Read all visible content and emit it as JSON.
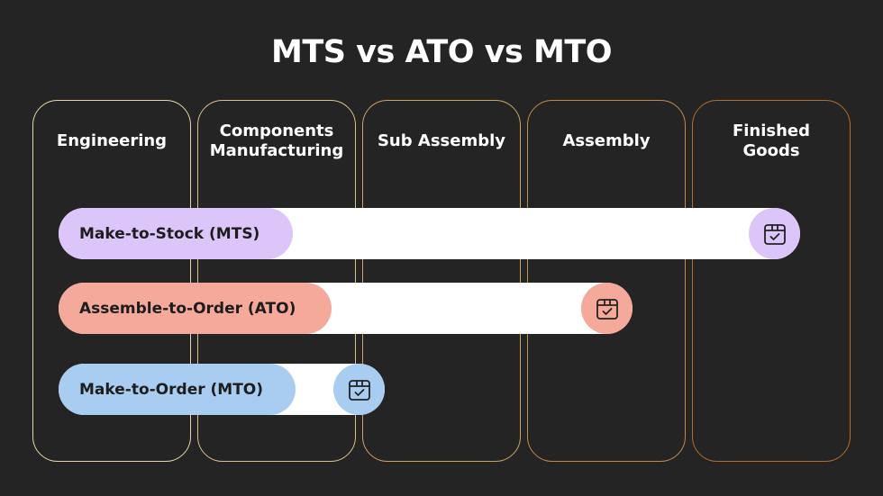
{
  "header": {
    "title": "MTS vs ATO vs MTO"
  },
  "columns": [
    {
      "lines": [
        "Engineering"
      ]
    },
    {
      "lines": [
        "Components",
        "Manufacturing"
      ]
    },
    {
      "lines": [
        "Sub Assembly"
      ]
    },
    {
      "lines": [
        "Assembly"
      ]
    },
    {
      "lines": [
        "Finished",
        "Goods"
      ]
    }
  ],
  "strategies": [
    {
      "label": "Make-to-Stock (MTS)",
      "color": "#dcc5f8"
    },
    {
      "label": "Assemble-to-Order (ATO)",
      "color": "#f5a99b"
    },
    {
      "label": "Make-to-Order (MTO)",
      "color": "#a9cdf1"
    }
  ]
}
